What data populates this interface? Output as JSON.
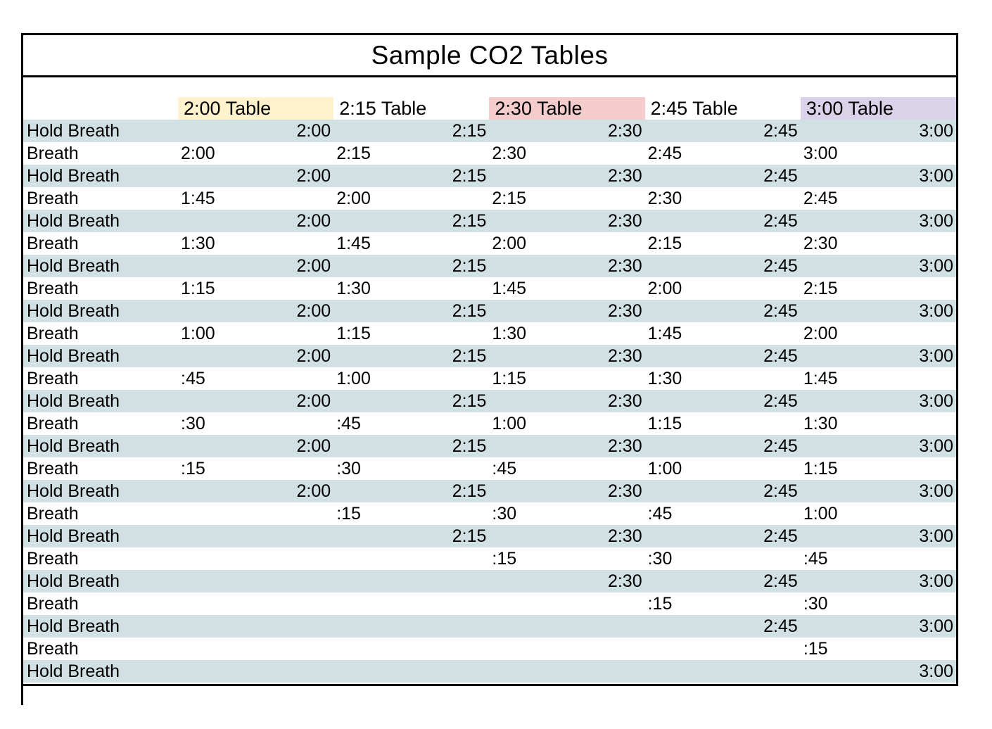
{
  "title": "Sample CO2 Tables",
  "tables": [
    {
      "label": "2:00 Table",
      "bg": "#fff2cc"
    },
    {
      "label": "2:15 Table",
      "bg": null
    },
    {
      "label": "2:30 Table",
      "bg": "#f4cccc"
    },
    {
      "label": "2:45 Table",
      "bg": null
    },
    {
      "label": "3:00 Table",
      "bg": "#d9d2e9"
    }
  ],
  "colors": {
    "hold_row_bg": "#d0e0e3",
    "breath_row_bg": "#ffffff",
    "header_yellow": "#fff2cc",
    "header_pink": "#f4cccc",
    "header_purple": "#d9d2e9",
    "border": "#000000",
    "text": "#000000"
  },
  "rows": [
    {
      "type": "hold",
      "label": "Hold Breath",
      "cells": [
        "2:00",
        "2:15",
        "2:30",
        "2:45",
        "3:00"
      ]
    },
    {
      "type": "breath",
      "label": "Breath",
      "cells": [
        "2:00",
        "2:15",
        "2:30",
        "2:45",
        "3:00"
      ]
    },
    {
      "type": "hold",
      "label": "Hold Breath",
      "cells": [
        "2:00",
        "2:15",
        "2:30",
        "2:45",
        "3:00"
      ]
    },
    {
      "type": "breath",
      "label": "Breath",
      "cells": [
        "1:45",
        "2:00",
        "2:15",
        "2:30",
        "2:45"
      ]
    },
    {
      "type": "hold",
      "label": "Hold Breath",
      "cells": [
        "2:00",
        "2:15",
        "2:30",
        "2:45",
        "3:00"
      ]
    },
    {
      "type": "breath",
      "label": "Breath",
      "cells": [
        "1:30",
        "1:45",
        "2:00",
        "2:15",
        "2:30"
      ]
    },
    {
      "type": "hold",
      "label": "Hold Breath",
      "cells": [
        "2:00",
        "2:15",
        "2:30",
        "2:45",
        "3:00"
      ]
    },
    {
      "type": "breath",
      "label": "Breath",
      "cells": [
        "1:15",
        "1:30",
        "1:45",
        "2:00",
        "2:15"
      ]
    },
    {
      "type": "hold",
      "label": "Hold Breath",
      "cells": [
        "2:00",
        "2:15",
        "2:30",
        "2:45",
        "3:00"
      ]
    },
    {
      "type": "breath",
      "label": "Breath",
      "cells": [
        "1:00",
        "1:15",
        "1:30",
        "1:45",
        "2:00"
      ]
    },
    {
      "type": "hold",
      "label": "Hold Breath",
      "cells": [
        "2:00",
        "2:15",
        "2:30",
        "2:45",
        "3:00"
      ]
    },
    {
      "type": "breath",
      "label": "Breath",
      "cells": [
        ":45",
        "1:00",
        "1:15",
        "1:30",
        "1:45"
      ]
    },
    {
      "type": "hold",
      "label": "Hold Breath",
      "cells": [
        "2:00",
        "2:15",
        "2:30",
        "2:45",
        "3:00"
      ]
    },
    {
      "type": "breath",
      "label": "Breath",
      "cells": [
        ":30",
        ":45",
        "1:00",
        "1:15",
        "1:30"
      ]
    },
    {
      "type": "hold",
      "label": "Hold Breath",
      "cells": [
        "2:00",
        "2:15",
        "2:30",
        "2:45",
        "3:00"
      ]
    },
    {
      "type": "breath",
      "label": "Breath",
      "cells": [
        ":15",
        ":30",
        ":45",
        "1:00",
        "1:15"
      ]
    },
    {
      "type": "hold",
      "label": "Hold Breath",
      "cells": [
        "2:00",
        "2:15",
        "2:30",
        "2:45",
        "3:00"
      ]
    },
    {
      "type": "breath",
      "label": "Breath",
      "cells": [
        "",
        ":15",
        ":30",
        ":45",
        "1:00"
      ]
    },
    {
      "type": "hold",
      "label": "Hold Breath",
      "cells": [
        "",
        "2:15",
        "2:30",
        "2:45",
        "3:00"
      ]
    },
    {
      "type": "breath",
      "label": "Breath",
      "cells": [
        "",
        "",
        ":15",
        ":30",
        ":45"
      ]
    },
    {
      "type": "hold",
      "label": "Hold Breath",
      "cells": [
        "",
        "",
        "2:30",
        "2:45",
        "3:00"
      ]
    },
    {
      "type": "breath",
      "label": "Breath",
      "cells": [
        "",
        "",
        "",
        ":15",
        ":30"
      ]
    },
    {
      "type": "hold",
      "label": "Hold Breath",
      "cells": [
        "",
        "",
        "",
        "2:45",
        "3:00"
      ]
    },
    {
      "type": "breath",
      "label": "Breath",
      "cells": [
        "",
        "",
        "",
        "",
        ":15"
      ]
    },
    {
      "type": "hold",
      "label": "Hold Breath",
      "cells": [
        "",
        "",
        "",
        "",
        "3:00"
      ]
    }
  ]
}
